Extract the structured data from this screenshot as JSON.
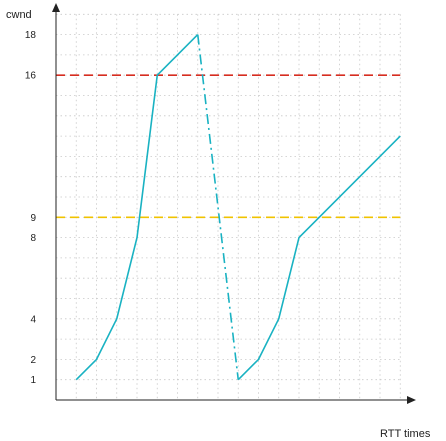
{
  "chart_data": {
    "type": "line",
    "xlabel": "RTT times",
    "ylabel": "cwnd",
    "yticks": [
      1,
      2,
      4,
      8,
      9,
      16,
      18
    ],
    "xlim": [
      0,
      17
    ],
    "ylim": [
      0,
      19
    ],
    "grid": true,
    "series": [
      {
        "x": [
          1,
          2,
          3,
          4,
          5,
          7
        ],
        "y": [
          1,
          2,
          4,
          8,
          16,
          18
        ],
        "style": "solid",
        "color": "#19b2c2"
      },
      {
        "x": [
          7,
          9
        ],
        "y": [
          18,
          1
        ],
        "style": "dash-dot",
        "color": "#19b2c2"
      },
      {
        "x": [
          9,
          10,
          11,
          12,
          17
        ],
        "y": [
          1,
          2,
          4,
          8,
          13
        ],
        "style": "solid",
        "color": "#19b2c2"
      }
    ],
    "reference_lines": [
      {
        "y": 16,
        "color": "#d62d20",
        "style": "dashed"
      },
      {
        "y": 9,
        "color": "#f0c300",
        "style": "dashed"
      }
    ]
  }
}
